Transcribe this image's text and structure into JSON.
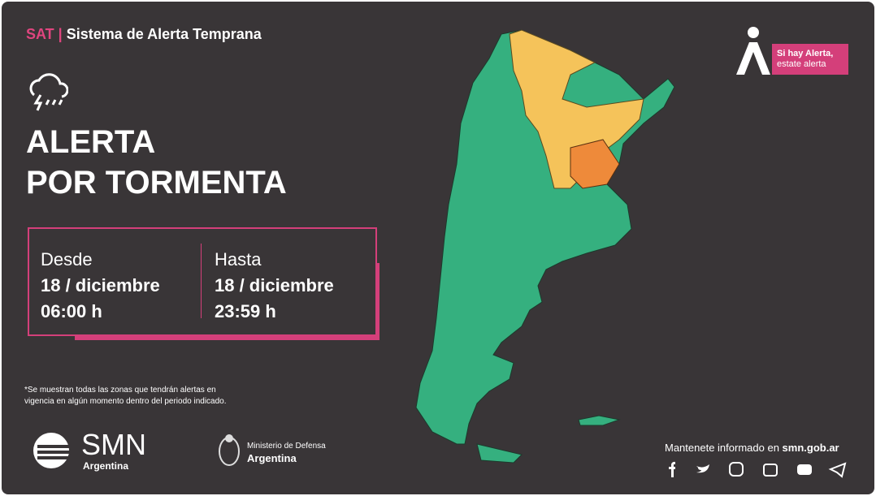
{
  "header": {
    "sat": "SAT",
    "system": "Sistema de Alerta Temprana"
  },
  "alert": {
    "title_lines": [
      "ALERTA",
      "POR TORMENTA"
    ]
  },
  "period": {
    "from": {
      "label": "Desde",
      "date": "18 / diciembre",
      "time": "06:00 h"
    },
    "to": {
      "label": "Hasta",
      "date": "18 / diciembre",
      "time": "23:59 h"
    }
  },
  "badge": {
    "lines": [
      "Si hay Alerta,",
      "estate alerta"
    ]
  },
  "footnote": {
    "lines": [
      "*Se muestran todas las zonas que tendrán alertas en",
      "vigencia en algún momento dentro del periodo indicado."
    ]
  },
  "logos": {
    "smn": {
      "name": "SMN",
      "country": "Argentina"
    },
    "ministry": {
      "name": "Ministerio de Defensa",
      "country": "Argentina"
    }
  },
  "footer": {
    "text": "Mantenete informado en ",
    "site": "smn.gob.ar"
  }
}
